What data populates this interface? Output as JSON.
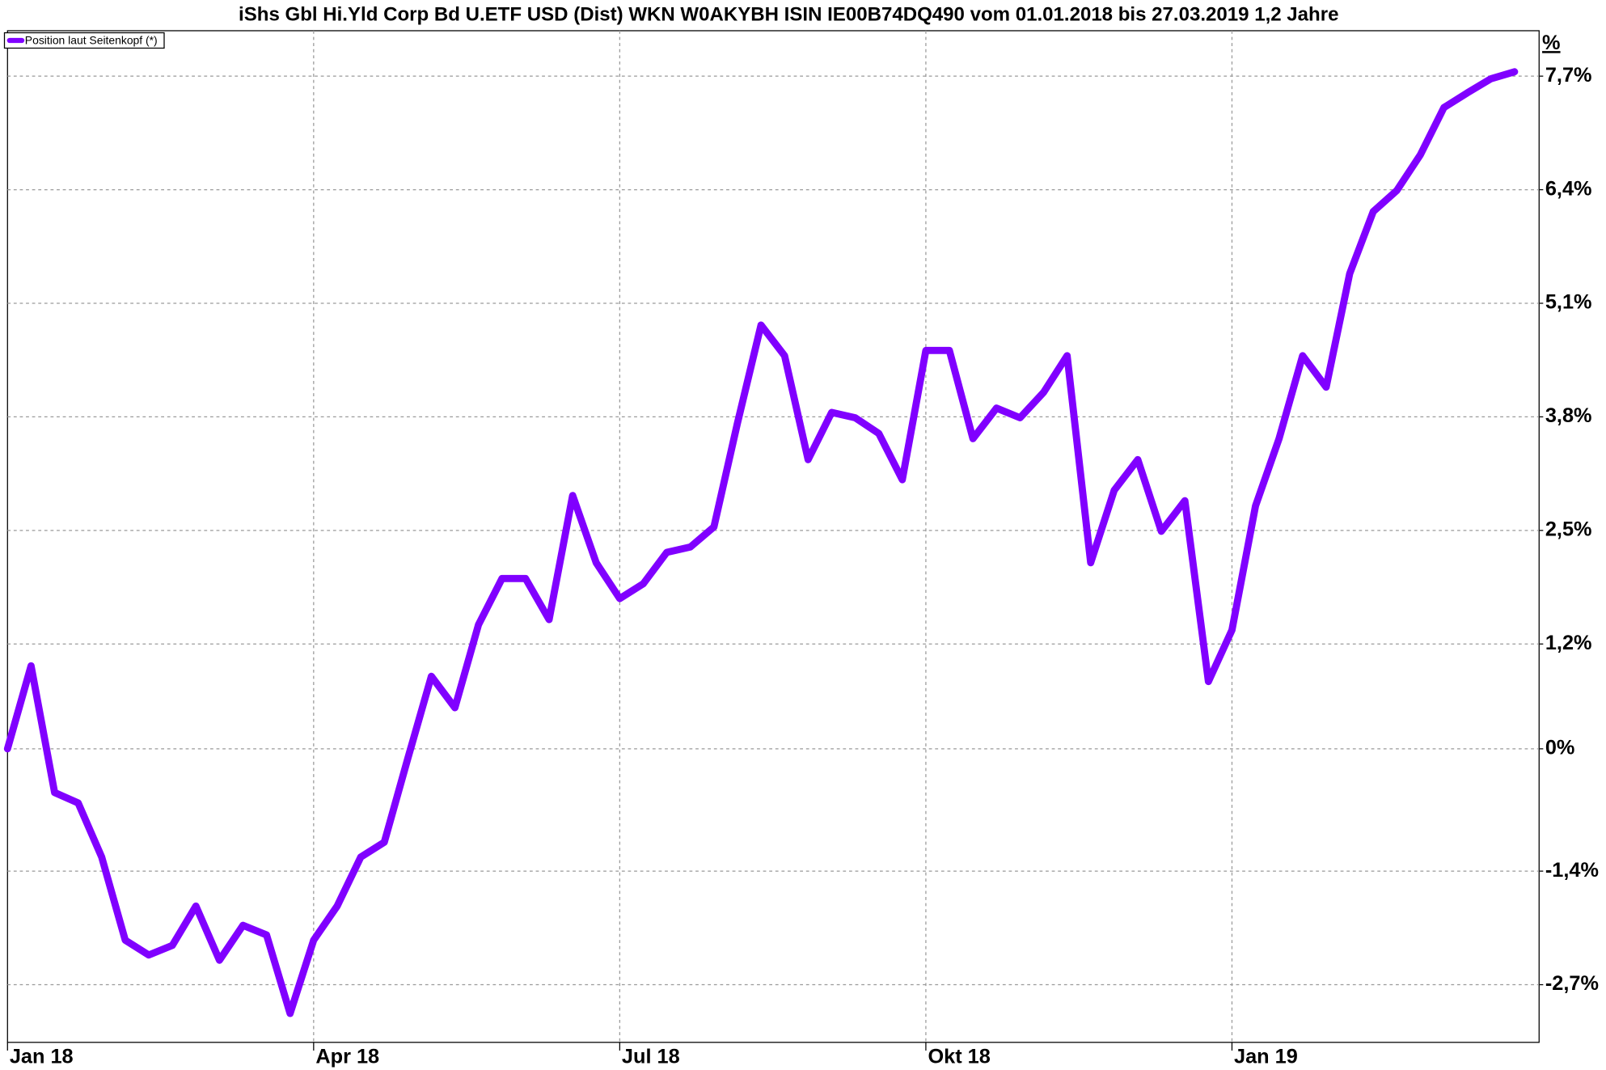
{
  "chart_data": {
    "type": "line",
    "title": "iShs Gbl Hi.Yld Corp Bd U.ETF USD (Dist) WKN W0AKYBH ISIN IE00B74DQ490 vom 01.01.2018 bis 27.03.2019 1,2 Jahre",
    "y_unit_label": "%",
    "categories": [
      "Jan 18",
      null,
      null,
      null,
      null,
      null,
      null,
      null,
      null,
      null,
      null,
      null,
      null,
      "Apr 18",
      null,
      null,
      null,
      null,
      null,
      null,
      null,
      null,
      null,
      null,
      null,
      null,
      "Jul 18",
      null,
      null,
      null,
      null,
      null,
      null,
      null,
      null,
      null,
      null,
      null,
      null,
      "Okt 18",
      null,
      null,
      null,
      null,
      null,
      null,
      null,
      null,
      null,
      null,
      null,
      null,
      "Jan 19",
      null,
      null,
      null,
      null,
      null,
      null,
      null,
      null,
      null,
      null,
      null,
      null
    ],
    "series": [
      {
        "name": "Position laut Seitenkopf (*)",
        "color": "#8000ff",
        "values": [
          0,
          0.95,
          -0.5,
          -0.62,
          -1.24,
          -2.19,
          -2.36,
          -2.25,
          -1.8,
          -2.42,
          -2.02,
          -2.13,
          -3.03,
          -2.19,
          -1.8,
          -1.24,
          -1.07,
          -0.11,
          0.83,
          0.47,
          1.42,
          1.95,
          1.95,
          1.48,
          2.9,
          2.13,
          1.72,
          1.89,
          2.25,
          2.31,
          2.54,
          3.73,
          4.85,
          4.5,
          3.31,
          3.85,
          3.79,
          3.61,
          3.08,
          4.56,
          4.56,
          3.55,
          3.9,
          3.79,
          4.08,
          4.5,
          2.13,
          2.96,
          3.31,
          2.49,
          2.84,
          0.77,
          1.36,
          2.78,
          3.55,
          4.5,
          4.14,
          5.44,
          6.15,
          6.39,
          6.8,
          7.34,
          7.51,
          7.67,
          7.75
        ]
      }
    ],
    "ylim": [
      -3.36,
      8.22
    ],
    "yticks": [
      {
        "value": -2.7,
        "label": "-2,7%"
      },
      {
        "value": -1.4,
        "label": "-1,4%"
      },
      {
        "value": 0,
        "label": "0%"
      },
      {
        "value": 1.2,
        "label": "1,2%"
      },
      {
        "value": 2.5,
        "label": "2,5%"
      },
      {
        "value": 3.8,
        "label": "3,8%"
      },
      {
        "value": 5.1,
        "label": "5,1%"
      },
      {
        "value": 6.4,
        "label": "6,4%"
      },
      {
        "value": 7.7,
        "label": "7,7%"
      }
    ],
    "grid": true,
    "legend": "top-left"
  }
}
